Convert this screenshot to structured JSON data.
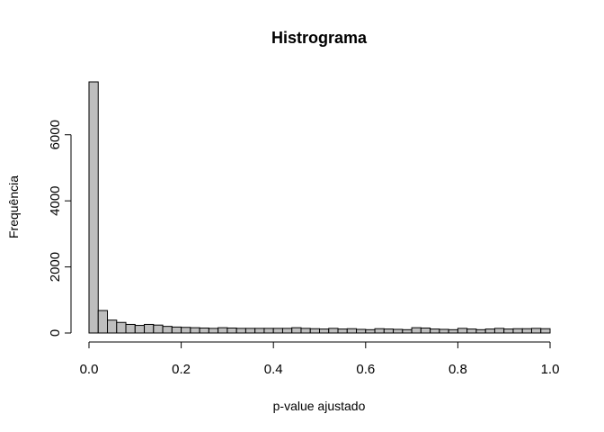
{
  "chart_data": {
    "type": "bar",
    "title": "Histrograma",
    "xlabel": "p-value ajustado",
    "ylabel": "Frequência",
    "xlim": [
      0,
      1
    ],
    "ylim": [
      0,
      7600
    ],
    "bin_width": 0.02,
    "x_ticks": [
      "0.0",
      "0.2",
      "0.4",
      "0.6",
      "0.8",
      "1.0"
    ],
    "x_tick_values": [
      0,
      0.2,
      0.4,
      0.6,
      0.8,
      1.0
    ],
    "y_ticks": [
      "0",
      "2000",
      "4000",
      "6000"
    ],
    "y_tick_values": [
      0,
      2000,
      4000,
      6000
    ],
    "bins": [
      0,
      0.02,
      0.04,
      0.06,
      0.08,
      0.1,
      0.12,
      0.14,
      0.16,
      0.18,
      0.2,
      0.22,
      0.24,
      0.26,
      0.28,
      0.3,
      0.32,
      0.34,
      0.36,
      0.38,
      0.4,
      0.42,
      0.44,
      0.46,
      0.48,
      0.5,
      0.52,
      0.54,
      0.56,
      0.58,
      0.6,
      0.62,
      0.64,
      0.66,
      0.68,
      0.7,
      0.72,
      0.74,
      0.76,
      0.78,
      0.8,
      0.82,
      0.84,
      0.86,
      0.88,
      0.9,
      0.92,
      0.94,
      0.96,
      0.98
    ],
    "values": [
      7600,
      680,
      390,
      320,
      260,
      230,
      260,
      240,
      200,
      180,
      170,
      160,
      150,
      140,
      160,
      150,
      140,
      140,
      140,
      140,
      140,
      140,
      160,
      140,
      130,
      120,
      140,
      120,
      130,
      110,
      100,
      130,
      120,
      110,
      100,
      160,
      150,
      120,
      110,
      100,
      140,
      120,
      100,
      120,
      140,
      120,
      130,
      130,
      140,
      130
    ]
  }
}
